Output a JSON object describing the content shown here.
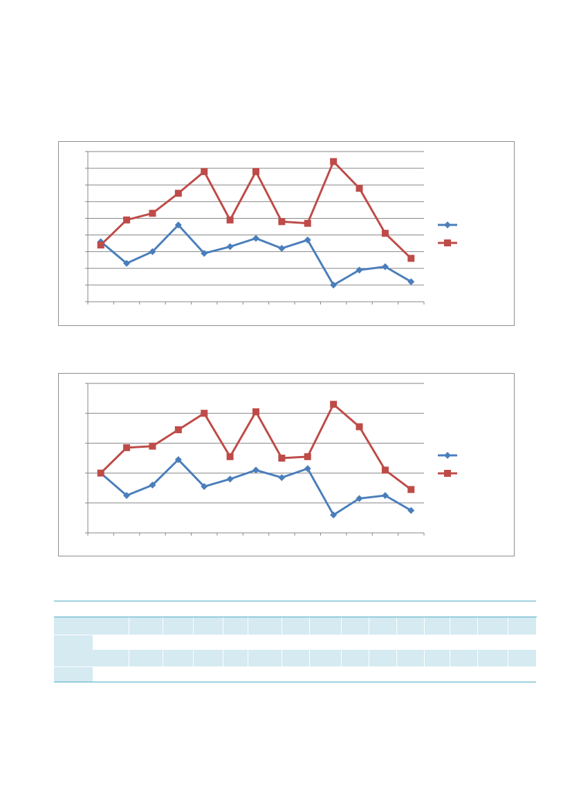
{
  "colors": {
    "series_1": "#4a7ebb",
    "series_2": "#be4b48",
    "gridline": "#868686",
    "frame": "#8c8c8c",
    "table_rule": "#4bacc6",
    "table_band": "#d5eaf1"
  },
  "chart_data": [
    {
      "type": "line",
      "title": "",
      "xlabel": "",
      "ylabel": "",
      "x_count": 13,
      "ylim": [
        0,
        9
      ],
      "gridlines": 9,
      "grid": true,
      "legend": "right",
      "series": [
        {
          "marker": "diamond",
          "values": [
            3.6,
            2.3,
            3.0,
            4.6,
            2.9,
            3.3,
            3.8,
            3.2,
            3.7,
            1.0,
            1.9,
            2.1,
            1.2
          ]
        },
        {
          "marker": "square",
          "values": [
            3.4,
            4.9,
            5.3,
            6.5,
            7.8,
            4.9,
            7.8,
            4.8,
            4.7,
            8.4,
            6.8,
            4.1,
            2.6
          ]
        }
      ]
    },
    {
      "type": "line",
      "title": "",
      "xlabel": "",
      "ylabel": "",
      "x_count": 13,
      "ylim": [
        0,
        5
      ],
      "gridlines": 5,
      "grid": true,
      "legend": "right",
      "series": [
        {
          "marker": "diamond",
          "values": [
            2.0,
            1.25,
            1.6,
            2.45,
            1.55,
            1.8,
            2.1,
            1.85,
            2.15,
            0.6,
            1.15,
            1.25,
            0.75
          ]
        },
        {
          "marker": "square",
          "values": [
            2.0,
            2.85,
            2.9,
            3.45,
            4.0,
            2.55,
            4.05,
            2.5,
            2.55,
            4.3,
            3.55,
            2.1,
            1.45
          ]
        }
      ]
    }
  ],
  "table": {
    "columns": 14,
    "body_rows": 4
  }
}
